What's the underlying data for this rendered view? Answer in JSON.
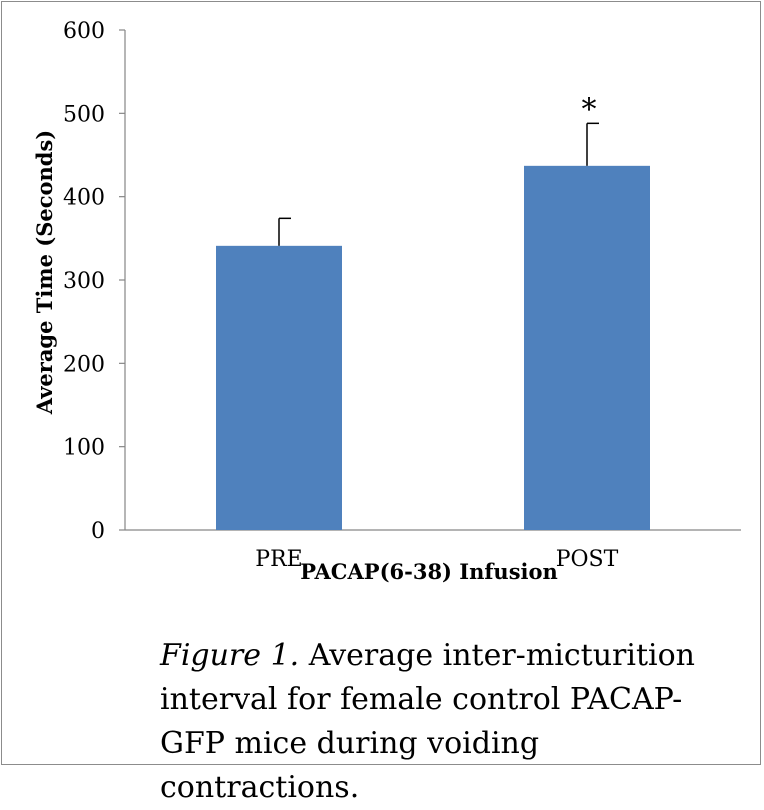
{
  "chart_data": {
    "type": "bar",
    "categories": [
      "PRE",
      "POST"
    ],
    "values": [
      341,
      437
    ],
    "error_bars": [
      33,
      51
    ],
    "annotations": [
      {
        "category": "POST",
        "text": "*"
      }
    ],
    "xlabel": "PACAP(6-38) Infusion",
    "ylabel": "Average Time (Seconds)",
    "ylim": [
      0,
      600
    ],
    "yticks": [
      0,
      100,
      200,
      300,
      400,
      500,
      600
    ],
    "bar_color": "#4f81bd",
    "grid": false
  },
  "caption": {
    "label": "Figure 1.",
    "text": " Average inter-micturition interval for female control PACAP-GFP mice during voiding contractions."
  }
}
